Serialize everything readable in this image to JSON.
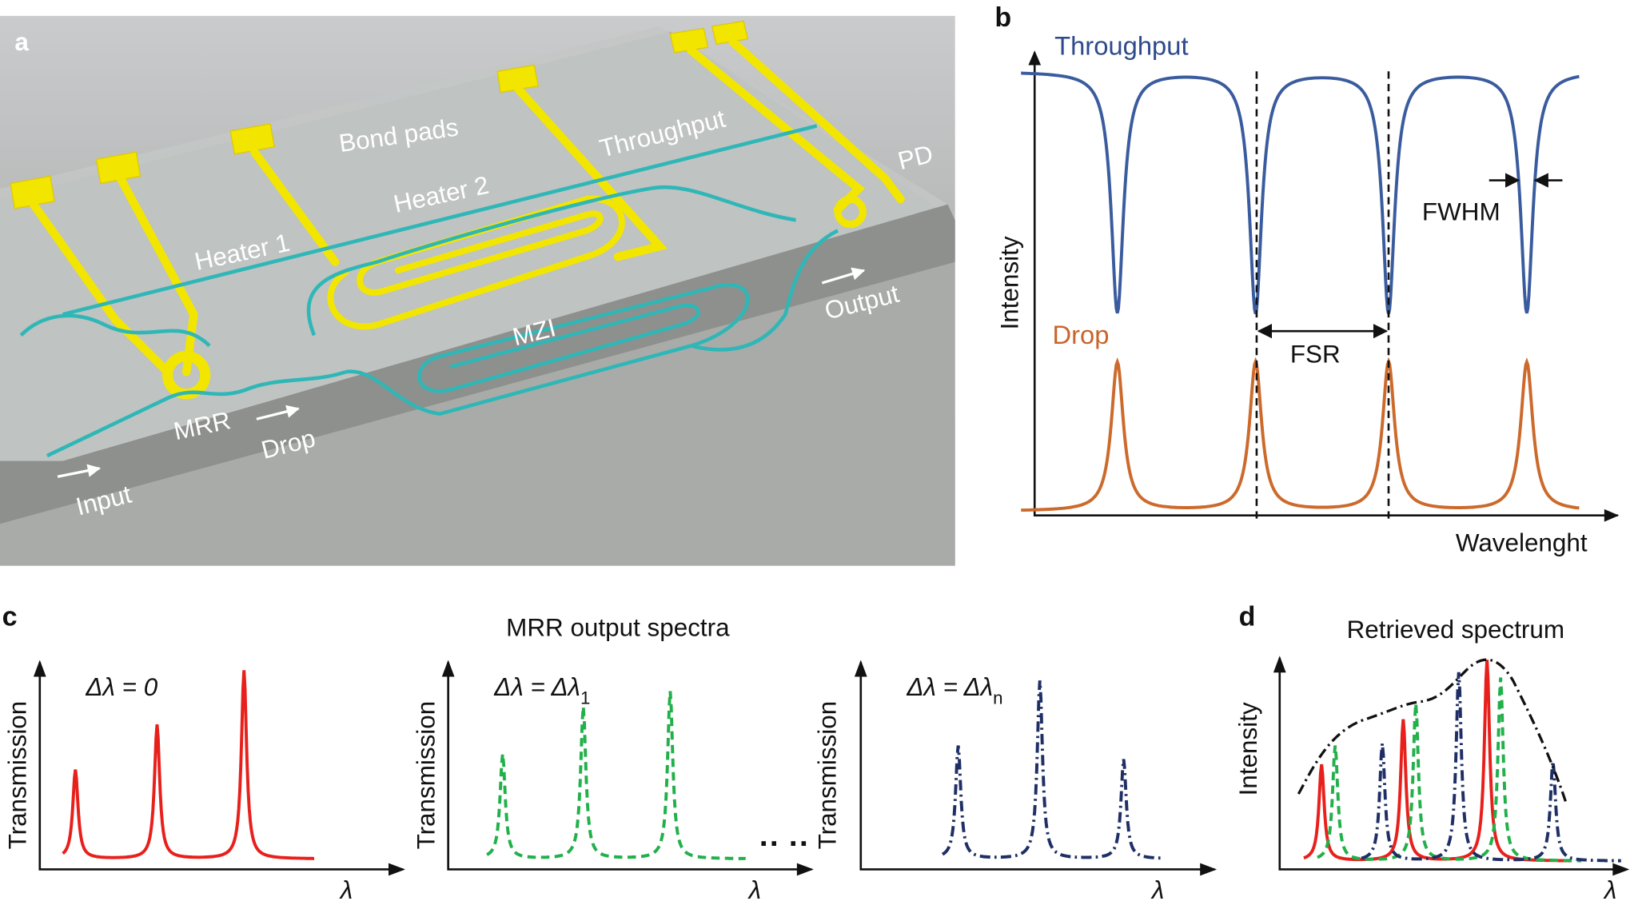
{
  "panel_a": {
    "label": "a",
    "labels": {
      "bond_pads": "Bond pads",
      "throughput": "Throughput",
      "pd": "PD",
      "heater_2": "Heater 2",
      "heater_1": "Heater 1",
      "output": "Output",
      "mzi": "MZI",
      "mrr": "MRR",
      "drop": "Drop",
      "input": "Input"
    }
  },
  "panel_b": {
    "label": "b",
    "throughput": "Throughput",
    "drop": "Drop",
    "y_label": "Intensity",
    "x_label": "Wavelenght",
    "fwhm": "FWHM",
    "fsr": "FSR"
  },
  "panel_c": {
    "label": "c",
    "title": "MRR output spectra",
    "plots": [
      {
        "annotation": {
          "text": "Δλ = 0"
        },
        "y_label": "Transmission",
        "x_label": "λ"
      },
      {
        "annotation": {
          "text": "Δλ = Δλ",
          "sub": "1"
        },
        "y_label": "Transmission",
        "x_label": "λ"
      },
      {
        "annotation": {
          "text": "Δλ = Δλ",
          "sub": "n"
        },
        "y_label": "Transmission",
        "x_label": "λ"
      }
    ]
  },
  "panel_d": {
    "label": "d",
    "title": "Retrieved spectrum",
    "y_label": "Intensity",
    "x_label": "λ"
  }
}
